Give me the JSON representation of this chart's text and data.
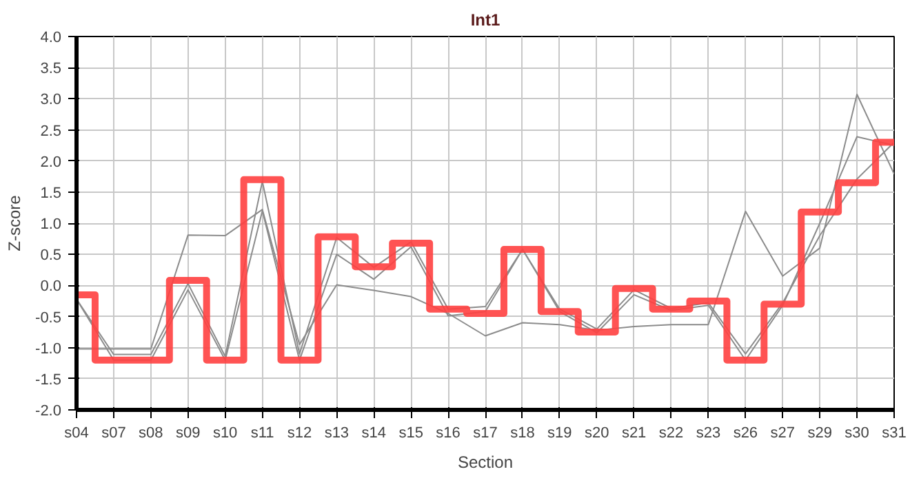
{
  "chart_data": {
    "type": "line",
    "title": "Int1",
    "xlabel": "Section",
    "ylabel": "Z-score",
    "categories": [
      "s04",
      "s07",
      "s08",
      "s09",
      "s10",
      "s11",
      "s12",
      "s13",
      "s14",
      "s15",
      "s16",
      "s17",
      "s18",
      "s19",
      "s20",
      "s21",
      "s22",
      "s23",
      "s26",
      "s27",
      "s29",
      "s30",
      "s31"
    ],
    "series": [
      {
        "color": "#8c8c8c",
        "values": [
          -1.02,
          -1.02,
          -1.02,
          0.81,
          0.8,
          1.22,
          -0.95,
          0.01,
          -0.08,
          -0.18,
          -0.45,
          -0.81,
          -0.6,
          -0.63,
          -0.72,
          -0.66,
          -0.63,
          -0.63,
          1.19,
          0.15,
          0.6,
          3.07,
          1.79
        ]
      },
      {
        "color": "#8c8c8c",
        "values": [
          -0.22,
          -1.11,
          -1.11,
          0.03,
          -1.14,
          1.67,
          -1.1,
          0.77,
          0.29,
          0.7,
          -0.38,
          -0.34,
          0.58,
          -0.38,
          -0.7,
          -0.07,
          -0.37,
          -0.28,
          -1.1,
          -0.28,
          0.8,
          1.71,
          2.3
        ]
      },
      {
        "color": "#8c8c8c",
        "values": [
          -0.22,
          -1.2,
          -1.2,
          -0.07,
          -1.2,
          1.2,
          -1.2,
          0.5,
          0.1,
          0.62,
          -0.49,
          -0.42,
          0.58,
          -0.42,
          -0.76,
          -0.15,
          -0.4,
          -0.32,
          -1.2,
          -0.32,
          1.0,
          2.39,
          2.25
        ]
      },
      {
        "type": "step",
        "color": "#ff4040",
        "values": [
          -0.15,
          -1.2,
          -1.2,
          0.08,
          -1.2,
          1.7,
          -1.2,
          0.78,
          0.3,
          0.68,
          -0.38,
          -0.45,
          0.58,
          -0.42,
          -0.75,
          -0.05,
          -0.38,
          -0.25,
          -1.2,
          -0.3,
          1.18,
          1.65,
          2.3
        ]
      }
    ],
    "ylim": [
      -2.0,
      4.0
    ],
    "yticks": [
      {
        "value": -2,
        "label": "-2.0"
      },
      {
        "value": -1.5,
        "label": "-1.5"
      },
      {
        "value": -1,
        "label": "-1.0"
      },
      {
        "value": -0.5,
        "label": "-0.5"
      },
      {
        "value": 0,
        "label": "0.0"
      },
      {
        "value": 0.5,
        "label": "0.5"
      },
      {
        "value": 1,
        "label": "1.0"
      },
      {
        "value": 1.5,
        "label": "1.5"
      },
      {
        "value": 2,
        "label": "2.0"
      },
      {
        "value": 2.5,
        "label": "2.5"
      },
      {
        "value": 3,
        "label": "3.0"
      },
      {
        "value": 3.5,
        "label": "3.5"
      },
      {
        "value": 4,
        "label": "4.0"
      }
    ],
    "grid": true
  }
}
